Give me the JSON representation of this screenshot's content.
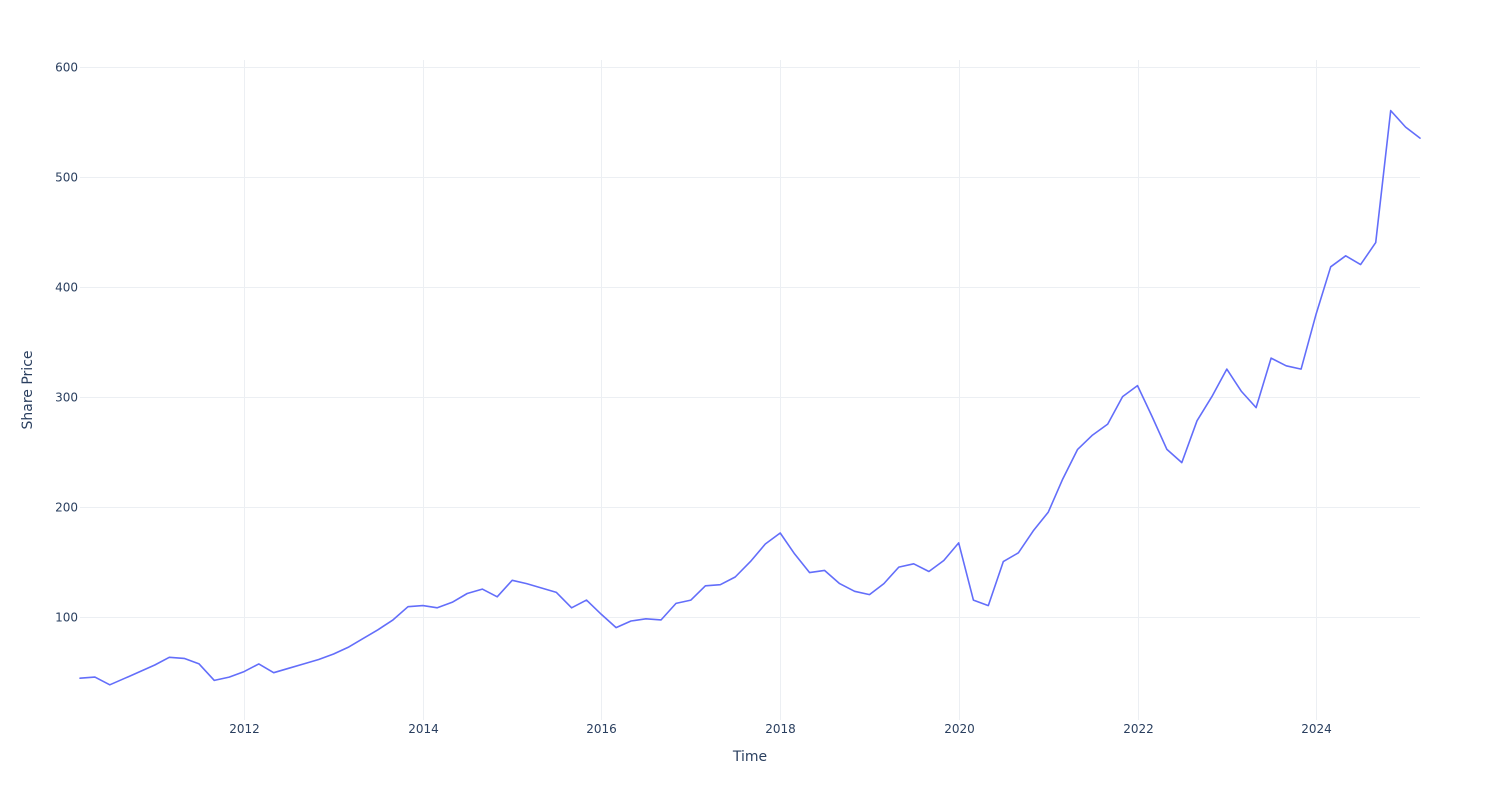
{
  "chart_data": {
    "type": "line",
    "title": "",
    "xlabel": "Time",
    "ylabel": "Share Price",
    "x_type": "date",
    "xlim": [
      "2010-03-01",
      "2025-03-01"
    ],
    "ylim": [
      6,
      606
    ],
    "x_ticks": [
      "2012",
      "2014",
      "2016",
      "2018",
      "2020",
      "2022",
      "2024"
    ],
    "y_ticks": [
      100,
      200,
      300,
      400,
      500,
      600
    ],
    "grid": true,
    "legend": "none",
    "colors": {
      "series": "#636efa",
      "grid": "#eceff3",
      "text": "#2a3f5f"
    },
    "series": [
      {
        "x": [
          "2010-03-01",
          "2010-05-01",
          "2010-07-01",
          "2010-09-01",
          "2010-11-01",
          "2011-01-01",
          "2011-03-01",
          "2011-05-01",
          "2011-07-01",
          "2011-09-01",
          "2011-11-01",
          "2012-01-01",
          "2012-03-01",
          "2012-05-01",
          "2012-07-01",
          "2012-09-01",
          "2012-11-01",
          "2013-01-01",
          "2013-03-01",
          "2013-05-01",
          "2013-07-01",
          "2013-09-01",
          "2013-11-01",
          "2014-01-01",
          "2014-03-01",
          "2014-05-01",
          "2014-07-01",
          "2014-09-01",
          "2014-11-01",
          "2015-01-01",
          "2015-03-01",
          "2015-05-01",
          "2015-07-01",
          "2015-09-01",
          "2015-11-01",
          "2016-01-01",
          "2016-03-01",
          "2016-05-01",
          "2016-07-01",
          "2016-09-01",
          "2016-11-01",
          "2017-01-01",
          "2017-03-01",
          "2017-05-01",
          "2017-07-01",
          "2017-09-01",
          "2017-11-01",
          "2018-01-01",
          "2018-03-01",
          "2018-05-01",
          "2018-07-01",
          "2018-09-01",
          "2018-11-01",
          "2019-01-01",
          "2019-03-01",
          "2019-05-01",
          "2019-07-01",
          "2019-09-01",
          "2019-11-01",
          "2020-01-01",
          "2020-03-01",
          "2020-05-01",
          "2020-07-01",
          "2020-09-01",
          "2020-11-01",
          "2021-01-01",
          "2021-03-01",
          "2021-05-01",
          "2021-07-01",
          "2021-09-01",
          "2021-11-01",
          "2022-01-01",
          "2022-03-01",
          "2022-05-01",
          "2022-07-01",
          "2022-09-01",
          "2022-11-01",
          "2023-01-01",
          "2023-03-01",
          "2023-05-01",
          "2023-07-01",
          "2023-09-01",
          "2023-11-01",
          "2024-01-01",
          "2024-03-01",
          "2024-05-01",
          "2024-07-01",
          "2024-09-01",
          "2024-11-01",
          "2025-01-01",
          "2025-03-01"
        ],
        "y": [
          44,
          45,
          38,
          44,
          50,
          56,
          63,
          62,
          57,
          42,
          45,
          50,
          57,
          49,
          53,
          57,
          61,
          66,
          72,
          80,
          88,
          97,
          109,
          110,
          108,
          113,
          121,
          125,
          118,
          133,
          130,
          126,
          122,
          108,
          115,
          102,
          90,
          96,
          98,
          97,
          112,
          115,
          128,
          129,
          136,
          150,
          166,
          176,
          157,
          140,
          142,
          130,
          123,
          120,
          130,
          145,
          148,
          141,
          151,
          167,
          115,
          110,
          150,
          158,
          178,
          195,
          225,
          252,
          265,
          275,
          300,
          310,
          282,
          252,
          240,
          278,
          300,
          325,
          305,
          290,
          335,
          328,
          325,
          375,
          418,
          428,
          420,
          440,
          560,
          545,
          535
        ]
      }
    ]
  }
}
